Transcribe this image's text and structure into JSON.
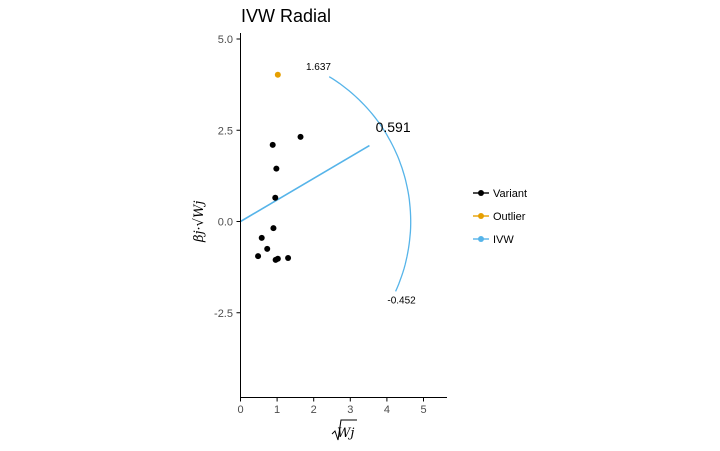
{
  "chart_data": {
    "type": "scatter",
    "title": "IVW Radial",
    "xlabel": "Wj",
    "ylabel": "βj·√Wj",
    "xlim": [
      0,
      5.6
    ],
    "ylim": [
      -4.7,
      5.2
    ],
    "xticks": [
      "0",
      "1",
      "2",
      "3",
      "4",
      "5"
    ],
    "yticks": [
      "-2.5",
      "0.0",
      "2.5",
      "5.0"
    ],
    "grid": false,
    "legend_position": "right",
    "colors": {
      "variant": "#000000",
      "outlier": "#E69F00",
      "ivw": "#56B4E9"
    },
    "series": [
      {
        "name": "Variant",
        "points": [
          [
            0.88,
            2.1
          ],
          [
            1.64,
            2.32
          ],
          [
            0.98,
            1.45
          ],
          [
            0.95,
            0.65
          ],
          [
            0.9,
            -0.18
          ],
          [
            0.58,
            -0.45
          ],
          [
            0.73,
            -0.75
          ],
          [
            0.48,
            -0.95
          ],
          [
            0.96,
            -1.05
          ],
          [
            1.02,
            -1.02
          ],
          [
            1.3,
            -1.0
          ]
        ]
      },
      {
        "name": "Outlier",
        "points": [
          [
            1.02,
            4.02
          ]
        ]
      },
      {
        "name": "IVW",
        "estimate": 0.591,
        "ci_upper": 1.637,
        "ci_lower": -0.452
      }
    ],
    "annotations": {
      "upper": "1.637",
      "estimate": "0.591",
      "lower": "-0.452"
    }
  }
}
